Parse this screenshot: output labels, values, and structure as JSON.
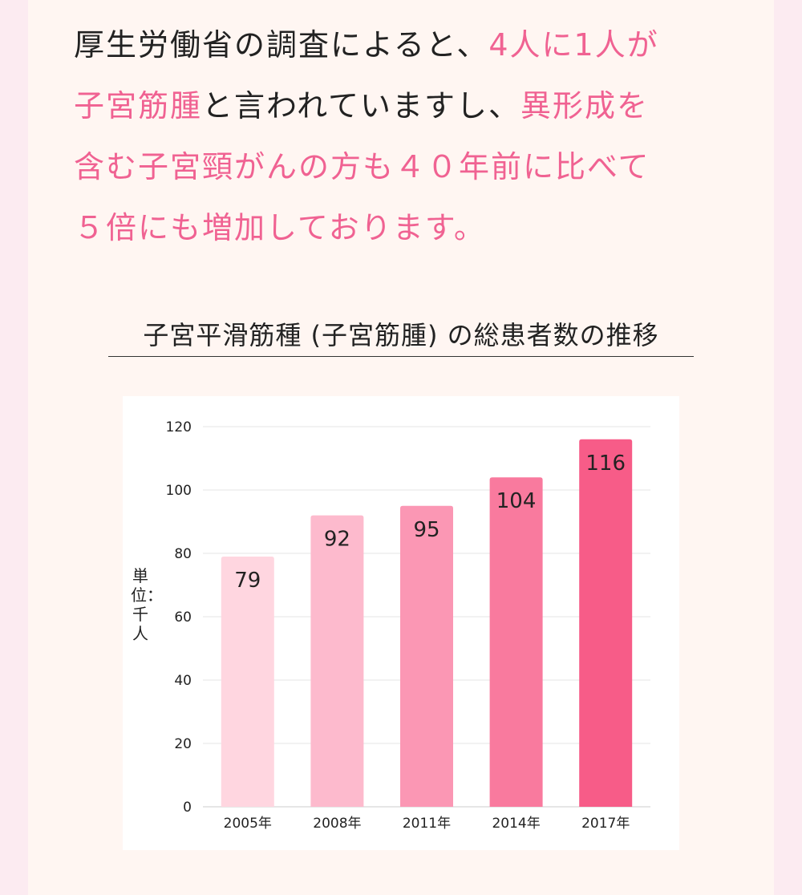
{
  "intro": {
    "segments": [
      {
        "text": "厚生労働省の調査によると、",
        "highlight": false
      },
      {
        "text": "4人に1人が",
        "highlight": true
      },
      {
        "break": true
      },
      {
        "text": "子宮筋腫",
        "highlight": true
      },
      {
        "text": "と言われていますし、",
        "highlight": false
      },
      {
        "text": "異形成を",
        "highlight": true
      },
      {
        "break": true
      },
      {
        "text": "含む子宮頸がんの方も４０年前に比べて",
        "highlight": true
      },
      {
        "break": true
      },
      {
        "text": "５倍にも増加しております。",
        "highlight": true
      }
    ]
  },
  "colors": {
    "highlight": "#f06292",
    "text": "#222222",
    "gridline": "#e6e6e6",
    "axis": "#cccccc"
  },
  "chart_data": {
    "type": "bar",
    "title": "子宮平滑筋種 (子宮筋腫) の総患者数の推移",
    "ylabel": "単位：千人",
    "xlabel": "",
    "categories": [
      "2005年",
      "2008年",
      "2011年",
      "2014年",
      "2017年"
    ],
    "values": [
      79,
      92,
      95,
      104,
      116
    ],
    "bar_colors": [
      "#ffd6e0",
      "#fdbacd",
      "#fb97b4",
      "#f97a9e",
      "#f75c88"
    ],
    "ylim": [
      0,
      120
    ],
    "yticks": [
      0,
      20,
      40,
      60,
      80,
      100,
      120
    ],
    "grid": true,
    "data_labels": true,
    "legend": "none"
  }
}
